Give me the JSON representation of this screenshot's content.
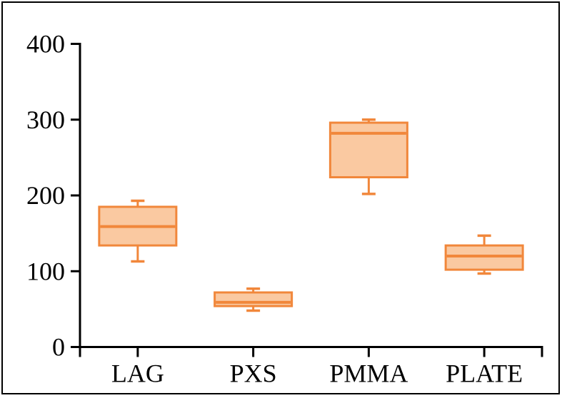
{
  "figure": {
    "background_color": "#ffffff",
    "frame_color": "#000000"
  },
  "chart_data": {
    "type": "boxplot",
    "title": "",
    "xlabel": "",
    "ylabel": "",
    "categories": [
      "LAG",
      "PXS",
      "PMMA",
      "PLATE"
    ],
    "series": [
      {
        "name": "LAG",
        "min": 113,
        "q1": 134,
        "median": 159,
        "q3": 185,
        "max": 193
      },
      {
        "name": "PXS",
        "min": 48,
        "q1": 54,
        "median": 59,
        "q3": 72,
        "max": 77
      },
      {
        "name": "PMMA",
        "min": 202,
        "q1": 224,
        "median": 282,
        "q3": 296,
        "max": 300
      },
      {
        "name": "PLATE",
        "min": 97,
        "q1": 102,
        "median": 120,
        "q3": 134,
        "max": 147
      }
    ],
    "y_axis": {
      "min": 0,
      "max": 400,
      "ticks": [
        0,
        100,
        200,
        300,
        400
      ],
      "tick_labels": [
        "0",
        "100",
        "200",
        "300",
        "400"
      ]
    },
    "grid": "off",
    "legend": "none",
    "colors": {
      "box_fill": "#FAC9A1",
      "box_stroke": "#F1873B",
      "axis": "#000000",
      "text": "#000000"
    }
  }
}
